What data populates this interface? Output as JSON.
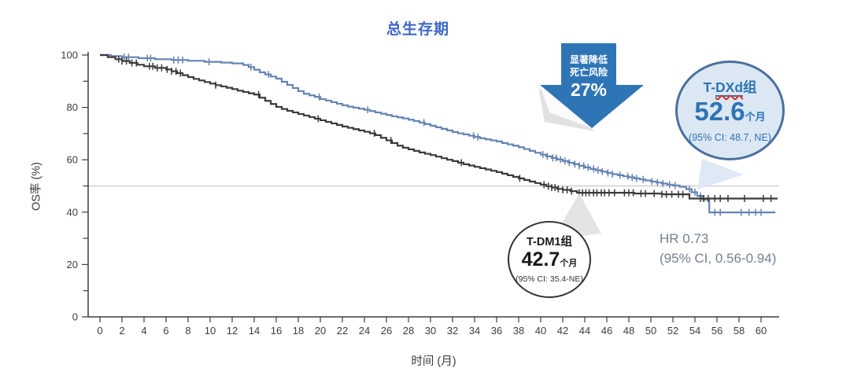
{
  "page": {
    "title": "总生存期"
  },
  "chart_data": {
    "type": "line",
    "subtype": "kaplan-meier-step-curve",
    "title": "总生存期",
    "xlabel": "时间 (月)",
    "ylabel": "OS率 (%)",
    "xlim": [
      0,
      62
    ],
    "ylim": [
      0,
      100
    ],
    "x_ticks": [
      0,
      2,
      4,
      6,
      8,
      10,
      12,
      14,
      16,
      18,
      20,
      22,
      24,
      26,
      28,
      30,
      32,
      34,
      36,
      38,
      40,
      42,
      44,
      46,
      48,
      50,
      52,
      54,
      56,
      58,
      60
    ],
    "y_ticks_labeled": [
      0,
      20,
      40,
      60,
      80,
      100
    ],
    "y_ticks_minor": [
      10,
      30,
      50,
      70,
      90
    ],
    "grid": false,
    "legend": "none (labels via callout badges)",
    "reference_line_y": 50,
    "series": [
      {
        "name": "T-DXd",
        "color": "#6484b3",
        "median_months": 52.6,
        "median_ci": "95% CI: 48.7, NE",
        "steps": [
          [
            0,
            100
          ],
          [
            1,
            99.6
          ],
          [
            2,
            99.2
          ],
          [
            3.5,
            98.8
          ],
          [
            5,
            98.4
          ],
          [
            6.5,
            98.1
          ],
          [
            8,
            97.8
          ],
          [
            9.5,
            97.4
          ],
          [
            11,
            97.1
          ],
          [
            12,
            96.8
          ],
          [
            13,
            96.2
          ],
          [
            13.5,
            95.4
          ],
          [
            14,
            94.4
          ],
          [
            14.5,
            93.4
          ],
          [
            15,
            92.6
          ],
          [
            15.5,
            91.8
          ],
          [
            16,
            91
          ],
          [
            16.5,
            89.8
          ],
          [
            17,
            88.6
          ],
          [
            17.5,
            87.4
          ],
          [
            18,
            86.2
          ],
          [
            18.5,
            85.2
          ],
          [
            19,
            84.6
          ],
          [
            19.5,
            84
          ],
          [
            20,
            83.2
          ],
          [
            20.5,
            82.6
          ],
          [
            21,
            82
          ],
          [
            21.5,
            81.4
          ],
          [
            22,
            80.8
          ],
          [
            22.5,
            80.3
          ],
          [
            23,
            79.9
          ],
          [
            23.5,
            79.5
          ],
          [
            24,
            79.1
          ],
          [
            24.5,
            78.6
          ],
          [
            25,
            78.1
          ],
          [
            25.5,
            77.6
          ],
          [
            26,
            77.1
          ],
          [
            26.5,
            76.6
          ],
          [
            27,
            76.2
          ],
          [
            27.5,
            75.8
          ],
          [
            28,
            75.3
          ],
          [
            28.5,
            74.8
          ],
          [
            29,
            74.2
          ],
          [
            29.5,
            73.6
          ],
          [
            30,
            73
          ],
          [
            30.5,
            72.4
          ],
          [
            31,
            71.8
          ],
          [
            31.5,
            71.2
          ],
          [
            32,
            70.6
          ],
          [
            32.5,
            70.1
          ],
          [
            33,
            69.7
          ],
          [
            33.5,
            69.2
          ],
          [
            34,
            68.7
          ],
          [
            34.5,
            68.2
          ],
          [
            35,
            67.8
          ],
          [
            35.5,
            67.4
          ],
          [
            36,
            67
          ],
          [
            36.5,
            66.4
          ],
          [
            37,
            65.9
          ],
          [
            37.5,
            65.4
          ],
          [
            38,
            64.8
          ],
          [
            38.5,
            64.1
          ],
          [
            39,
            63.4
          ],
          [
            39.5,
            62.7
          ],
          [
            40,
            62
          ],
          [
            40.5,
            61.3
          ],
          [
            41,
            60.7
          ],
          [
            41.5,
            60.1
          ],
          [
            42,
            59.5
          ],
          [
            42.5,
            58.9
          ],
          [
            43,
            58.3
          ],
          [
            43.5,
            57.7
          ],
          [
            44,
            57.1
          ],
          [
            44.5,
            56.5
          ],
          [
            45,
            56
          ],
          [
            45.5,
            55.5
          ],
          [
            46,
            55
          ],
          [
            46.5,
            54.5
          ],
          [
            47,
            54.1
          ],
          [
            47.5,
            53.7
          ],
          [
            48,
            53.3
          ],
          [
            48.5,
            52.9
          ],
          [
            49,
            52.5
          ],
          [
            49.5,
            52.1
          ],
          [
            50,
            51.7
          ],
          [
            50.5,
            51.3
          ],
          [
            51,
            50.9
          ],
          [
            51.5,
            50.5
          ],
          [
            52,
            50.2
          ],
          [
            52.6,
            49.7
          ],
          [
            53.2,
            48.8
          ],
          [
            53.7,
            47.6
          ],
          [
            54.2,
            46.2
          ],
          [
            54.7,
            44.8
          ],
          [
            55.3,
            39.9
          ],
          [
            61.3,
            39.9
          ]
        ],
        "censor_marks_x": [
          2.2,
          2.6,
          4.3,
          4.6,
          6.7,
          7.1,
          7.5,
          9.9,
          13.7,
          15.3,
          19.9,
          24.3,
          29.4,
          33.9,
          34.3,
          40.2,
          40.6,
          41.1,
          41.4,
          41.8,
          42.2,
          42.6,
          43.1,
          43.5,
          43.9,
          44.3,
          44.8,
          45.2,
          45.6,
          46.1,
          46.5,
          47.2,
          47.9,
          48.3,
          48.7,
          49.3,
          50.1,
          50.6,
          51.1,
          51.7,
          52.2,
          53.5,
          54.0,
          54.5,
          55.8,
          56.3,
          58.2,
          58.9,
          59.5,
          60.0
        ]
      },
      {
        "name": "T-DM1",
        "color": "#3b3b3b",
        "median_months": 42.7,
        "median_ci": "95% CI: 35.4-NE",
        "steps": [
          [
            0,
            100
          ],
          [
            0.7,
            99.2
          ],
          [
            1.4,
            98.4
          ],
          [
            2,
            97.7
          ],
          [
            2.7,
            97
          ],
          [
            3.4,
            96.3
          ],
          [
            4,
            95.7
          ],
          [
            5,
            95.1
          ],
          [
            6,
            94.5
          ],
          [
            6.5,
            93.8
          ],
          [
            7,
            93.1
          ],
          [
            7.5,
            92.3
          ],
          [
            8,
            91.6
          ],
          [
            8.5,
            90.9
          ],
          [
            9,
            90.3
          ],
          [
            9.5,
            89.7
          ],
          [
            10,
            89.1
          ],
          [
            10.5,
            88.5
          ],
          [
            11,
            88
          ],
          [
            11.5,
            87.5
          ],
          [
            12,
            87
          ],
          [
            12.5,
            86.4
          ],
          [
            13,
            85.9
          ],
          [
            13.5,
            85.4
          ],
          [
            14,
            84.9
          ],
          [
            14.5,
            83.7
          ],
          [
            15,
            82.5
          ],
          [
            15.5,
            81.3
          ],
          [
            16,
            80.2
          ],
          [
            16.5,
            79.4
          ],
          [
            17,
            78.7
          ],
          [
            17.5,
            78.1
          ],
          [
            18,
            77.5
          ],
          [
            18.5,
            76.9
          ],
          [
            19,
            76.3
          ],
          [
            19.5,
            75.7
          ],
          [
            20,
            75.1
          ],
          [
            20.5,
            74.5
          ],
          [
            21,
            73.9
          ],
          [
            21.5,
            73.3
          ],
          [
            22,
            72.7
          ],
          [
            22.5,
            72.2
          ],
          [
            23,
            71.7
          ],
          [
            23.5,
            71.2
          ],
          [
            24,
            70.7
          ],
          [
            24.5,
            70.1
          ],
          [
            25,
            69.4
          ],
          [
            25.5,
            68.4
          ],
          [
            26,
            67.4
          ],
          [
            26.5,
            66.4
          ],
          [
            27,
            65.4
          ],
          [
            27.5,
            64.6
          ],
          [
            28,
            64
          ],
          [
            28.5,
            63.4
          ],
          [
            29,
            62.8
          ],
          [
            29.5,
            62.3
          ],
          [
            30,
            61.8
          ],
          [
            30.5,
            61.2
          ],
          [
            31,
            60.6
          ],
          [
            31.5,
            60
          ],
          [
            32,
            59.5
          ],
          [
            32.5,
            58.9
          ],
          [
            33,
            58.3
          ],
          [
            33.5,
            57.8
          ],
          [
            34,
            57.3
          ],
          [
            34.5,
            56.8
          ],
          [
            35,
            56.3
          ],
          [
            35.5,
            55.8
          ],
          [
            36,
            55.3
          ],
          [
            36.5,
            54.7
          ],
          [
            37,
            54.1
          ],
          [
            37.5,
            53.5
          ],
          [
            38,
            52.9
          ],
          [
            38.5,
            52.3
          ],
          [
            39,
            51.7
          ],
          [
            39.5,
            51.1
          ],
          [
            40,
            50.5
          ],
          [
            40.5,
            49.9
          ],
          [
            41,
            49.4
          ],
          [
            41.5,
            48.9
          ],
          [
            42,
            48.5
          ],
          [
            42.7,
            48
          ],
          [
            43.3,
            47.4
          ],
          [
            48.5,
            47.1
          ],
          [
            51,
            46.8
          ],
          [
            53.5,
            45.2
          ],
          [
            61.5,
            45.2
          ]
        ],
        "censor_marks_x": [
          1.7,
          2.0,
          2.4,
          2.9,
          3.3,
          4.5,
          4.8,
          5.2,
          5.6,
          6.1,
          6.5,
          6.9,
          7.3,
          10.5,
          14.4,
          19.8,
          24.9,
          26.4,
          32.8,
          38.1,
          40.3,
          40.7,
          41.0,
          41.3,
          41.6,
          42.0,
          42.4,
          42.8,
          43.5,
          43.8,
          44.1,
          44.4,
          44.8,
          45.1,
          45.5,
          45.8,
          46.2,
          46.7,
          47.6,
          48.0,
          48.4,
          49.1,
          49.5,
          50.3,
          51.0,
          51.4,
          51.9,
          52.5,
          52.9,
          54.5,
          54.8,
          55.2,
          55.8,
          56.3,
          57.0,
          58.5,
          60.2,
          60.9
        ]
      }
    ]
  },
  "annotations": {
    "risk_arrow": {
      "line1": "显著降低",
      "line2": "死亡风险",
      "value": "27%",
      "color": "#2e75b6"
    },
    "tdxd_badge": {
      "name_prefix": "T-",
      "name_underlined": "DXd",
      "name_suffix": "组",
      "value": "52.6",
      "unit": "个月",
      "ci": "(95% CI: 48.7, NE)"
    },
    "tdm1_badge": {
      "label": "T-DM1组",
      "value": "42.7",
      "unit": "个月",
      "ci": "(95% CI: 35.4-NE)"
    },
    "hazard_ratio": {
      "line1": "HR 0.73",
      "line2": "(95% CI, 0.56-0.94)"
    }
  }
}
